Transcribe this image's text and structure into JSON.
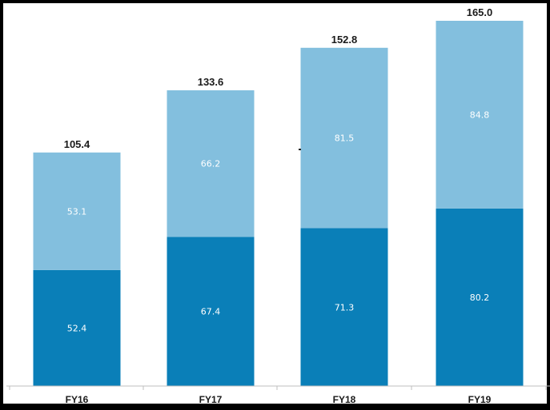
{
  "chart_data": {
    "type": "bar",
    "stacked": true,
    "categories": [
      "FY16",
      "FY17",
      "FY18",
      "FY19"
    ],
    "series": [
      {
        "values": [
          52.4,
          67.4,
          71.3,
          80.2
        ],
        "color": "#0a7fb8"
      },
      {
        "values": [
          53.1,
          66.2,
          81.5,
          84.8
        ],
        "color": "#83bfde"
      }
    ],
    "totals": [
      "105.4",
      "133.6",
      "152.8",
      "165.0"
    ],
    "segment_labels": [
      [
        "52.4",
        "67.4",
        "71.3",
        "80.2"
      ],
      [
        "53.1",
        "66.2",
        "81.5",
        "84.8"
      ]
    ],
    "title": "",
    "xlabel": "",
    "ylabel": "",
    "ylim": [
      0,
      165
    ],
    "grid": false,
    "legend": "none"
  }
}
